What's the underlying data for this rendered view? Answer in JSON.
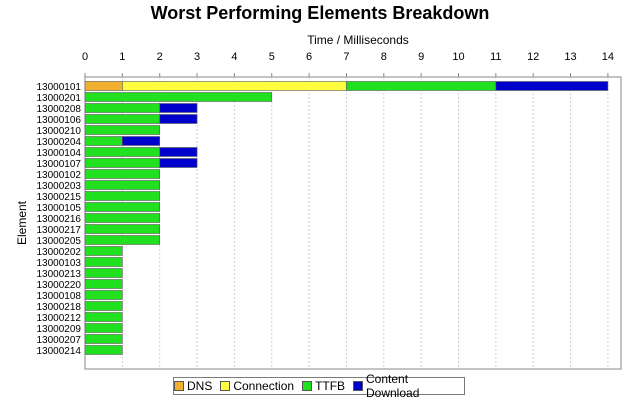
{
  "chart_data": {
    "type": "bar",
    "orientation": "horizontal",
    "stacked": true,
    "title": "Worst Performing Elements Breakdown",
    "xlabel": "Time / Milliseconds",
    "ylabel": "Element",
    "xlim": [
      0,
      14.5
    ],
    "xticks": [
      0,
      1,
      2,
      3,
      4,
      5,
      6,
      7,
      8,
      9,
      10,
      11,
      12,
      13,
      14
    ],
    "x_axis_position": "top",
    "grid": true,
    "legend_position": "bottom",
    "categories": [
      "13000101",
      "13000201",
      "13000208",
      "13000106",
      "13000210",
      "13000204",
      "13000104",
      "13000107",
      "13000102",
      "13000203",
      "13000215",
      "13000105",
      "13000216",
      "13000217",
      "13000205",
      "13000202",
      "13000103",
      "13000213",
      "13000220",
      "13000108",
      "13000218",
      "13000212",
      "13000209",
      "13000207",
      "13000214"
    ],
    "series": [
      {
        "name": "DNS",
        "color": "#f0b030",
        "values": [
          1,
          0,
          0,
          0,
          0,
          0,
          0,
          0,
          0,
          0,
          0,
          0,
          0,
          0,
          0,
          0,
          0,
          0,
          0,
          0,
          0,
          0,
          0,
          0,
          0
        ]
      },
      {
        "name": "Connection",
        "color": "#ffff40",
        "values": [
          6,
          0,
          0,
          0,
          0,
          0,
          0,
          0,
          0,
          0,
          0,
          0,
          0,
          0,
          0,
          0,
          0,
          0,
          0,
          0,
          0,
          0,
          0,
          0,
          0
        ]
      },
      {
        "name": "TTFB",
        "color": "#20e020",
        "values": [
          4,
          5,
          2,
          2,
          2,
          1,
          2,
          2,
          2,
          2,
          2,
          2,
          2,
          2,
          2,
          1,
          1,
          1,
          1,
          1,
          1,
          1,
          1,
          1,
          1
        ]
      },
      {
        "name": "Content Download",
        "color": "#0000cc",
        "values": [
          3,
          0,
          1,
          1,
          0,
          1,
          1,
          1,
          0,
          0,
          0,
          0,
          0,
          0,
          0,
          0,
          0,
          0,
          0,
          0,
          0,
          0,
          0,
          0,
          0
        ]
      }
    ]
  }
}
